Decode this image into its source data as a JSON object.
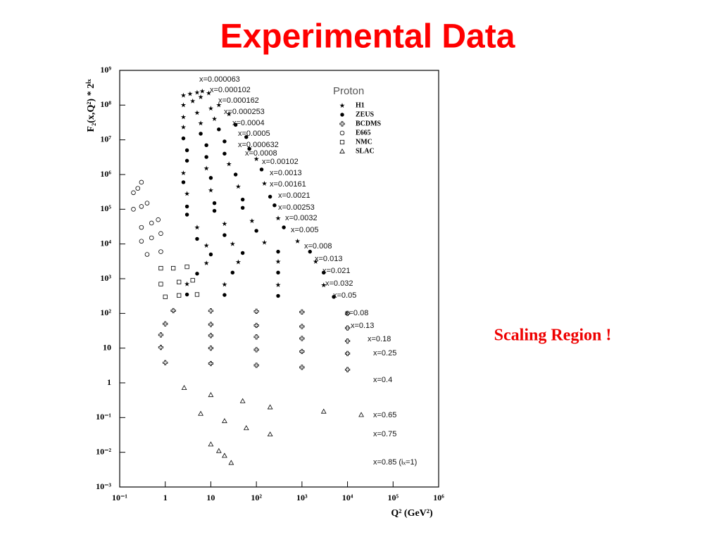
{
  "title": "Experimental Data",
  "note": "Scaling Region !",
  "chart_data": {
    "type": "scatter",
    "xscale": "log",
    "yscale": "log",
    "xlabel": "Q² (GeV²)",
    "ylabel": "F₂(x,Q²) * 2ⁱˣ",
    "xlim": [
      0.1,
      1000000
    ],
    "ylim": [
      0.001,
      1000000000
    ],
    "xticks": [
      {
        "value": 0.1,
        "label": "10⁻¹"
      },
      1,
      10,
      {
        "value": 100,
        "label": "10²"
      },
      {
        "value": 1000,
        "label": "10³"
      },
      {
        "value": 10000,
        "label": "10⁴"
      },
      {
        "value": 100000,
        "label": "10⁵"
      },
      {
        "value": 1000000,
        "label": "10⁶"
      }
    ],
    "yticks": [
      {
        "value": 0.001,
        "label": "10⁻³"
      },
      {
        "value": 0.01,
        "label": "10⁻²"
      },
      {
        "value": 0.1,
        "label": "10⁻¹"
      },
      1,
      10,
      {
        "value": 100,
        "label": "10²"
      },
      {
        "value": 1000,
        "label": "10³"
      },
      {
        "value": 10000,
        "label": "10⁴"
      },
      {
        "value": 100000,
        "label": "10⁵"
      },
      {
        "value": 1000000,
        "label": "10⁶"
      },
      {
        "value": 10000000,
        "label": "10⁷"
      },
      {
        "value": 100000000,
        "label": "10⁸"
      },
      {
        "value": 1000000000,
        "label": "10⁹"
      }
    ],
    "legend": {
      "title": "Proton",
      "items": [
        "H1",
        "ZEUS",
        "BCDMS",
        "E665",
        "NMC",
        "SLAC"
      ]
    },
    "series": [
      {
        "name": "x=0.000063",
        "marker": "H1",
        "x": [
          2.5,
          3.5,
          5,
          6.5
        ],
        "values": [
          190000000,
          210000000,
          230000000,
          250000000
        ]
      },
      {
        "name": "x=0.000102",
        "marker": "H1",
        "x": [
          2.5,
          4,
          6,
          9
        ],
        "values": [
          100000000,
          130000000,
          170000000,
          220000000
        ]
      },
      {
        "name": "x=0.000162",
        "marker": "H1",
        "x": [
          2.5,
          5,
          10,
          15
        ],
        "values": [
          45000000,
          60000000,
          80000000,
          100000000
        ]
      },
      {
        "name": "x=0.000253",
        "marker": "H1",
        "x": [
          2.5,
          6,
          12,
          25
        ],
        "values": [
          23000000,
          30000000,
          40000000,
          55000000
        ]
      },
      {
        "name": "x=0.0004",
        "marker": "ZEUS",
        "x": [
          2.5,
          6,
          15,
          35
        ],
        "values": [
          11000000,
          15000000,
          20000000,
          27000000
        ]
      },
      {
        "name": "x=0.0005",
        "marker": "ZEUS",
        "x": [
          3,
          8,
          20,
          60
        ],
        "values": [
          5000000,
          7000000,
          9000000,
          12000000
        ]
      },
      {
        "name": "x=0.000632",
        "marker": "ZEUS",
        "x": [
          3,
          8,
          20,
          70
        ],
        "values": [
          2500000,
          3200000,
          4000000,
          5500000
        ]
      },
      {
        "name": "x=0.0008",
        "marker": "H1",
        "x": [
          2.5,
          8,
          25,
          100
        ],
        "values": [
          1100000,
          1500000,
          2000000,
          2800000
        ]
      },
      {
        "name": "x=0.00102",
        "marker": "ZEUS",
        "x": [
          2.5,
          10,
          35,
          130
        ],
        "values": [
          600000,
          800000,
          1000000,
          1400000
        ]
      },
      {
        "name": "x=0.0013",
        "marker": "H1",
        "x": [
          3,
          10,
          40,
          150
        ],
        "values": [
          280000,
          350000,
          450000,
          550000
        ]
      },
      {
        "name": "x=0.00161",
        "marker": "ZEUS",
        "x": [
          3,
          12,
          50,
          200
        ],
        "values": [
          120000,
          150000,
          190000,
          230000
        ]
      },
      {
        "name": "x=0.0021",
        "marker": "ZEUS",
        "x": [
          3,
          12,
          50,
          250
        ],
        "values": [
          70000,
          90000,
          110000,
          130000
        ]
      },
      {
        "name": "x=0.00253",
        "marker": "H1",
        "x": [
          5,
          20,
          80,
          300
        ],
        "values": [
          30000,
          38000,
          46000,
          55000
        ]
      },
      {
        "name": "x=0.0032",
        "marker": "ZEUS",
        "x": [
          5,
          20,
          100,
          400
        ],
        "values": [
          14000,
          18000,
          24000,
          30000
        ]
      },
      {
        "name": "x=0.005",
        "marker": "H1",
        "x": [
          8,
          30,
          150,
          800
        ],
        "values": [
          9000,
          10000,
          11000,
          12000
        ]
      },
      {
        "name": "x=0.008",
        "marker": "ZEUS",
        "x": [
          10,
          50,
          300,
          1500
        ],
        "values": [
          5000,
          5500,
          6000,
          6000
        ]
      },
      {
        "name": "x=0.013",
        "marker": "H1",
        "x": [
          8,
          40,
          300,
          2000
        ],
        "values": [
          2800,
          3000,
          3100,
          3100
        ]
      },
      {
        "name": "x=0.021",
        "marker": "ZEUS",
        "x": [
          5,
          30,
          300,
          3000
        ],
        "values": [
          1400,
          1500,
          1500,
          1500
        ]
      },
      {
        "name": "x=0.032",
        "marker": "H1",
        "x": [
          3,
          20,
          300,
          3000
        ],
        "values": [
          700,
          680,
          660,
          650
        ]
      },
      {
        "name": "x=0.05",
        "marker": "ZEUS",
        "x": [
          3,
          20,
          300,
          5000
        ],
        "values": [
          350,
          340,
          320,
          300
        ]
      },
      {
        "name": "x=0.08",
        "marker": "BCDMS",
        "x": [
          1.5,
          10,
          100,
          1000,
          10000
        ],
        "values": [
          120,
          118,
          115,
          110,
          100
        ]
      },
      {
        "name": "x=0.13",
        "marker": "BCDMS",
        "x": [
          1,
          10,
          100,
          1000,
          10000
        ],
        "values": [
          50,
          48,
          45,
          42,
          38
        ]
      },
      {
        "name": "x=0.18",
        "marker": "BCDMS",
        "x": [
          0.8,
          10,
          100,
          1000,
          10000
        ],
        "values": [
          24,
          23,
          21,
          19,
          16
        ]
      },
      {
        "name": "x=0.25",
        "marker": "BCDMS",
        "x": [
          0.8,
          10,
          100,
          1000,
          10000
        ],
        "values": [
          10.5,
          10,
          9,
          8,
          7
        ]
      },
      {
        "name": "x=0.4",
        "marker": "BCDMS",
        "x": [
          1,
          10,
          100,
          1000,
          10000
        ],
        "values": [
          3.8,
          3.6,
          3.2,
          2.8,
          2.4
        ]
      },
      {
        "name": "x=0.65",
        "marker": "SLAC",
        "x": [
          2.6,
          10,
          50,
          200,
          3000,
          20000
        ],
        "values": [
          0.72,
          0.45,
          0.3,
          0.2,
          0.15,
          0.12
        ]
      },
      {
        "name": "x=0.75",
        "marker": "SLAC",
        "x": [
          6,
          20,
          60,
          200
        ],
        "values": [
          0.13,
          0.08,
          0.05,
          0.033
        ]
      },
      {
        "name": "x=0.85 (iₓ=1)",
        "marker": "SLAC",
        "x": [
          10,
          15,
          20,
          28
        ],
        "values": [
          0.017,
          0.011,
          0.008,
          0.005
        ]
      },
      {
        "marker": "E665",
        "x": [
          0.2,
          0.25,
          0.3,
          0.2,
          0.3,
          0.4,
          0.3,
          0.5,
          0.7,
          0.3,
          0.5,
          0.8,
          0.4,
          0.8
        ],
        "values": [
          300000,
          400000,
          600000,
          100000,
          120000,
          150000,
          30000,
          40000,
          50000,
          12000,
          15000,
          20000,
          5000,
          6000
        ]
      },
      {
        "marker": "NMC",
        "x": [
          0.8,
          1.5,
          3,
          0.8,
          2,
          4,
          1,
          2,
          5
        ],
        "values": [
          2000,
          2000,
          2200,
          700,
          800,
          900,
          300,
          330,
          350
        ]
      }
    ]
  }
}
